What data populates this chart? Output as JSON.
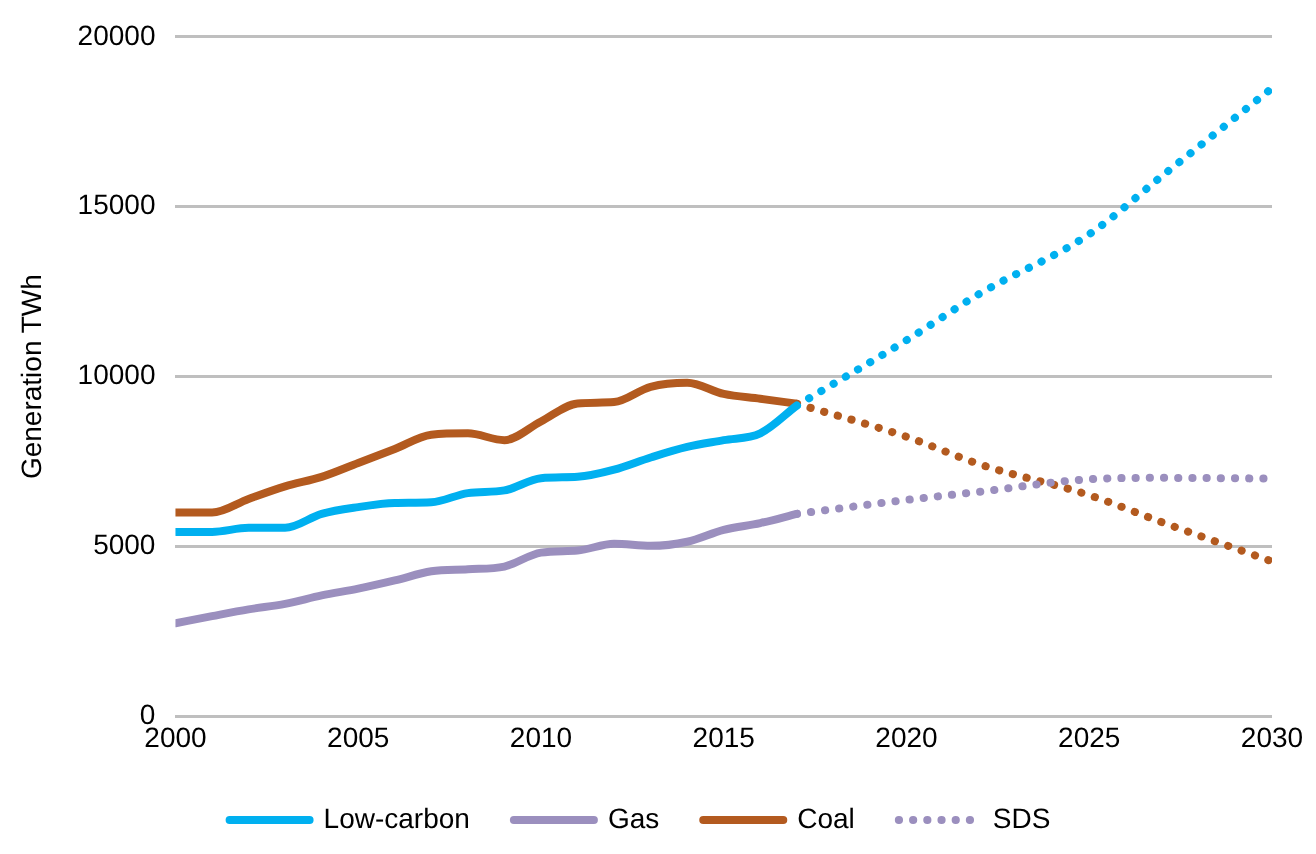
{
  "chart_data": {
    "type": "line",
    "ylabel": "Generation TWh",
    "xlim": [
      2000,
      2030
    ],
    "xticks": [
      2000,
      2005,
      2010,
      2015,
      2020,
      2025,
      2030
    ],
    "ylim": [
      0,
      20000
    ],
    "yticks": [
      0,
      5000,
      10000,
      15000,
      20000
    ],
    "grid": "y",
    "legend": "bottom",
    "marker": "none",
    "series": [
      {
        "name": "Low-carbon",
        "color": "#00b0f0",
        "line_style": "solid",
        "x": [
          2000,
          2001,
          2002,
          2003,
          2004,
          2005,
          2006,
          2007,
          2008,
          2009,
          2010,
          2011,
          2012,
          2013,
          2014,
          2015,
          2016,
          2017
        ],
        "values": [
          5430,
          5430,
          5550,
          5550,
          5960,
          6160,
          6280,
          6300,
          6570,
          6650,
          7010,
          7050,
          7260,
          7620,
          7930,
          8130,
          8330,
          9150
        ]
      },
      {
        "name": "Gas",
        "color": "#9b8fbe",
        "line_style": "solid",
        "x": [
          2000,
          2001,
          2002,
          2003,
          2004,
          2005,
          2006,
          2007,
          2008,
          2009,
          2010,
          2011,
          2012,
          2013,
          2014,
          2015,
          2016,
          2017
        ],
        "values": [
          2740,
          2950,
          3150,
          3310,
          3560,
          3760,
          4000,
          4270,
          4330,
          4410,
          4820,
          4880,
          5080,
          5020,
          5140,
          5490,
          5690,
          5960
        ]
      },
      {
        "name": "Coal",
        "color": "#b35a1f",
        "line_style": "solid",
        "x": [
          2000,
          2001,
          2002,
          2003,
          2004,
          2005,
          2006,
          2007,
          2008,
          2009,
          2010,
          2011,
          2012,
          2013,
          2014,
          2015,
          2016,
          2017
        ],
        "values": [
          6000,
          6000,
          6400,
          6770,
          7050,
          7460,
          7870,
          8290,
          8330,
          8130,
          8680,
          9210,
          9250,
          9700,
          9820,
          9490,
          9350,
          9200
        ]
      },
      {
        "color": "#00b0f0",
        "line_style": "dotted",
        "x": [
          2017,
          2020,
          2022,
          2025,
          2027,
          2030
        ],
        "values": [
          9150,
          11070,
          12440,
          14190,
          15910,
          18490
        ]
      },
      {
        "name": "SDS",
        "color": "#9b8fbe",
        "line_style": "dotted",
        "x": [
          2017,
          2020,
          2022,
          2025,
          2027,
          2030
        ],
        "values": [
          5960,
          6370,
          6610,
          6980,
          7020,
          7000
        ]
      },
      {
        "color": "#b35a1f",
        "line_style": "dotted",
        "x": [
          2017,
          2020,
          2022,
          2025,
          2027,
          2030
        ],
        "values": [
          9200,
          8230,
          7420,
          6510,
          5710,
          4560
        ]
      }
    ]
  }
}
